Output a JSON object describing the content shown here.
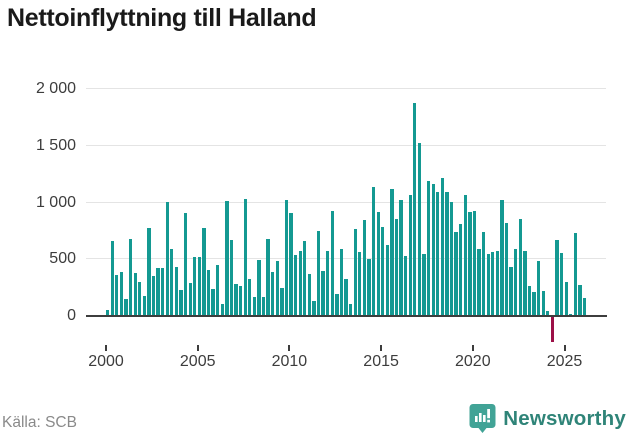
{
  "title": "Nettoinflyttning till Halland",
  "source_note": "Källa: SCB",
  "brand": {
    "name": "Newsworthy",
    "icon": "newsworthy-speech-bubble-chart-icon",
    "icon_color": "#41a396",
    "text_color": "#2f8478"
  },
  "colors": {
    "bar_positive": "#149992",
    "bar_negative": "#9c1047",
    "grid": "#e4e4e4",
    "axis": "#3d3d3d",
    "label_text": "#3d3d3d",
    "title_text": "#1a1a1a",
    "source_text": "#8a8a8a"
  },
  "chart_data": {
    "type": "bar",
    "title": "Nettoinflyttning till Halland",
    "xlabel": "",
    "ylabel": "",
    "frequency": "quarterly",
    "x_start": "2000-Q1",
    "x_end": "2026-Q1",
    "grid": "horizontal",
    "legend": "none",
    "ylim": [
      -300,
      2100
    ],
    "y_ticks": [
      {
        "label": "0",
        "value": 0
      },
      {
        "label": "500",
        "value": 500
      },
      {
        "label": "1 000",
        "value": 1000
      },
      {
        "label": "1 500",
        "value": 1500
      },
      {
        "label": "2 000",
        "value": 2000
      }
    ],
    "x_ticks": [
      {
        "label": "2000",
        "year": 2000
      },
      {
        "label": "2005",
        "year": 2005
      },
      {
        "label": "2010",
        "year": 2010
      },
      {
        "label": "2015",
        "year": 2015
      },
      {
        "label": "2020",
        "year": 2020
      },
      {
        "label": "2025",
        "year": 2025
      }
    ],
    "values": [
      50,
      660,
      357,
      380,
      146,
      672,
      371,
      292,
      175,
      775,
      345,
      418,
      418,
      1003,
      585,
      424,
      225,
      906,
      287,
      520,
      520,
      775,
      400,
      234,
      447,
      102,
      1008,
      664,
      278,
      263,
      1024,
      322,
      161,
      489,
      161,
      673,
      386,
      482,
      240,
      1015,
      906,
      532,
      570,
      658,
      366,
      132,
      746,
      395,
      570,
      921,
      190,
      585,
      322,
      102,
      760,
      564,
      839,
      497,
      1131,
      912,
      781,
      620,
      1116,
      848,
      1015,
      526,
      1067,
      1871,
      1520,
      541,
      1184,
      1161,
      1090,
      1216,
      1085,
      997,
      734,
      807,
      1064,
      909,
      918,
      585,
      739,
      538,
      559,
      573,
      1017,
      813,
      427,
      588,
      853,
      570,
      263,
      205,
      482,
      219,
      44,
      -225,
      664,
      555,
      298,
      10,
      731,
      269,
      152
    ],
    "notes": {
      "max_value": 1871,
      "max_quarter": "2016-Q4",
      "negative_quarter": "2024-Q2",
      "negative_value": -225
    }
  }
}
